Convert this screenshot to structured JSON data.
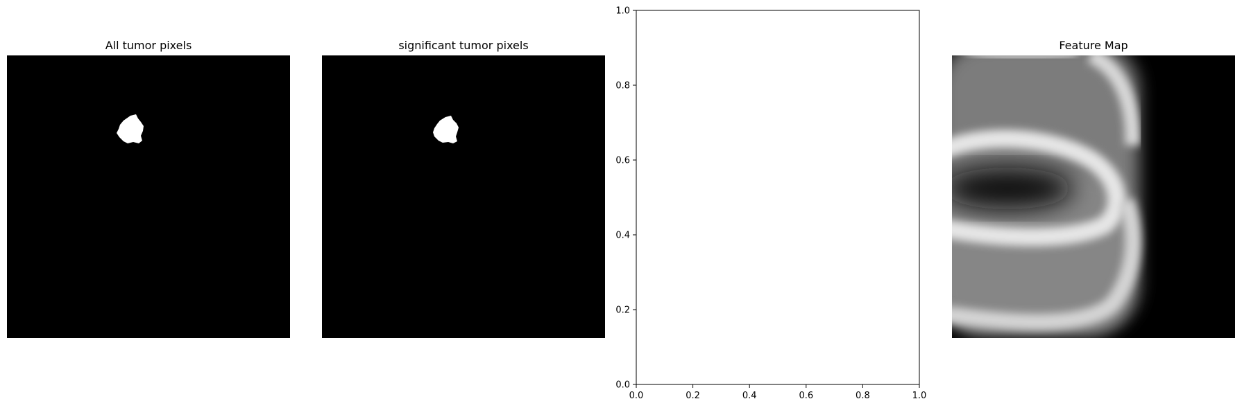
{
  "chart_data": [
    {
      "type": "image",
      "title": "All tumor pixels",
      "colormap": "gray",
      "content": "binary mask: single white tumor blob on black background"
    },
    {
      "type": "image",
      "title": "significant tumor pixels",
      "colormap": "gray",
      "content": "binary mask: single white tumor blob on black background"
    },
    {
      "type": "scatter",
      "title": "",
      "xlabel": "",
      "ylabel": "",
      "xlim": [
        0,
        1
      ],
      "ylim": [
        0,
        1
      ],
      "x_ticks": [
        "0.0",
        "0.2",
        "0.4",
        "0.6",
        "0.8",
        "1.0"
      ],
      "y_ticks": [
        "0.0",
        "0.2",
        "0.4",
        "0.6",
        "0.8",
        "1.0"
      ],
      "series": []
    },
    {
      "type": "image",
      "title": "Feature Map",
      "colormap": "gray",
      "content": "blurred grayscale feature map with bright curved bands"
    }
  ]
}
